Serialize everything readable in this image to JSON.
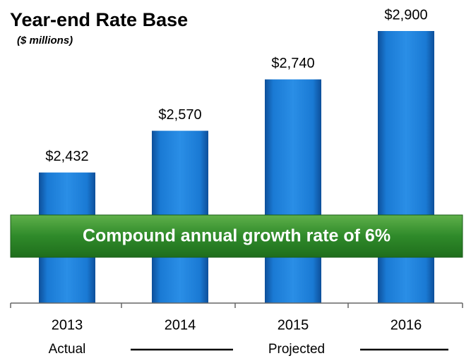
{
  "chart_data": {
    "type": "bar",
    "title": "Year-end Rate Base",
    "subtitle": "($ millions)",
    "categories": [
      "2013",
      "2014",
      "2015",
      "2016"
    ],
    "values": [
      2432,
      2570,
      2740,
      2900
    ],
    "value_labels": [
      "$2,432",
      "$2,570",
      "$2,740",
      "$2,900"
    ],
    "color": "#1a7ad4",
    "ylim": [
      2000,
      2900
    ],
    "annotation": "Compound annual growth rate of 6%",
    "period_labels": [
      "Actual",
      "Projected"
    ]
  }
}
